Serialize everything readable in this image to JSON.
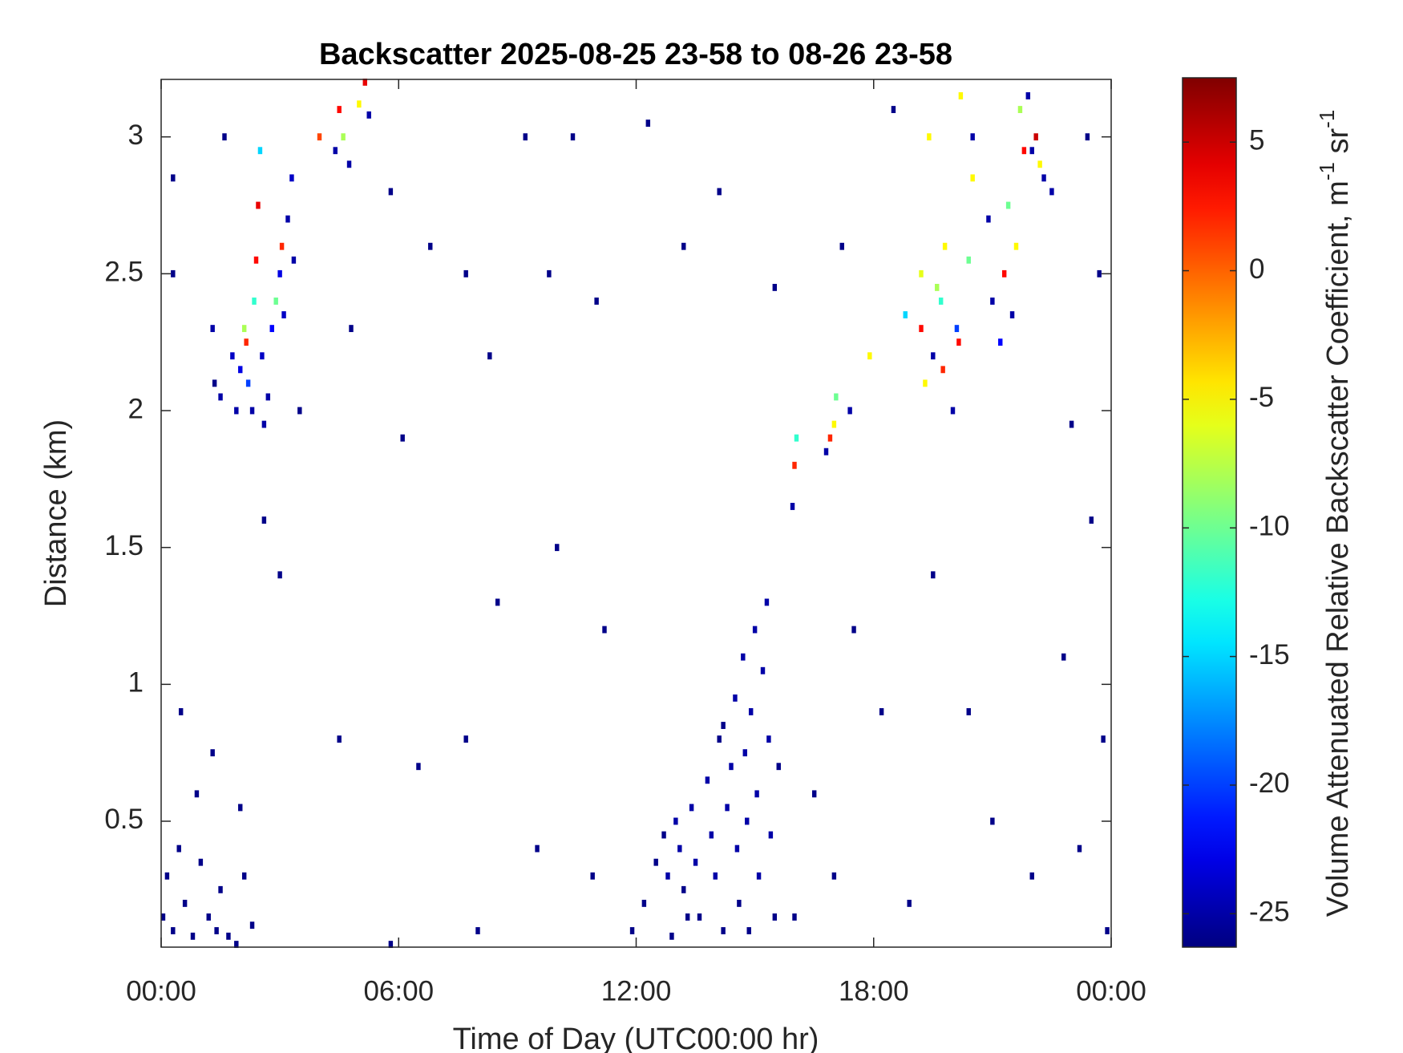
{
  "chart_data": {
    "type": "heatmap",
    "title": "Backscatter 2025-08-25 23-58 to 08-26 23-58",
    "x_label": "Time of Day (UTC00:00 hr)",
    "y_label": "Distance (km)",
    "colorbar_label": [
      "Volume Attenuated Relative Backscatter Coefficient, m",
      "-1",
      " sr",
      "-1"
    ],
    "colormap": "jet",
    "xlim": [
      0,
      24
    ],
    "xticks": [
      {
        "value": 0,
        "label": "00:00"
      },
      {
        "value": 6,
        "label": "06:00"
      },
      {
        "value": 12,
        "label": "12:00"
      },
      {
        "value": 18,
        "label": "18:00"
      },
      {
        "value": 24,
        "label": "00:00"
      }
    ],
    "ylim": [
      0.04,
      3.21
    ],
    "yticks": [
      0.5,
      1,
      1.5,
      2,
      2.5,
      3
    ],
    "clim": [
      -26.3,
      7.5
    ],
    "cticks": [
      -25,
      -20,
      -15,
      -10,
      -5,
      0,
      5
    ],
    "cells": [
      [
        1.3,
        2.3,
        -25
      ],
      [
        1.35,
        2.1,
        -26
      ],
      [
        1.5,
        2.05,
        -25
      ],
      [
        1.8,
        2.2,
        -24
      ],
      [
        1.9,
        2.0,
        -25
      ],
      [
        2.0,
        2.15,
        -23
      ],
      [
        2.1,
        2.3,
        -8
      ],
      [
        2.15,
        2.25,
        2
      ],
      [
        2.2,
        2.1,
        -20
      ],
      [
        2.3,
        2.0,
        -25
      ],
      [
        2.35,
        2.4,
        -12
      ],
      [
        2.4,
        2.55,
        3
      ],
      [
        2.45,
        2.75,
        4
      ],
      [
        2.5,
        2.95,
        -15
      ],
      [
        2.55,
        2.2,
        -24
      ],
      [
        2.6,
        1.95,
        -25
      ],
      [
        2.7,
        2.05,
        -25
      ],
      [
        2.8,
        2.3,
        -22
      ],
      [
        2.9,
        2.4,
        -10
      ],
      [
        3.0,
        2.5,
        -23
      ],
      [
        3.05,
        2.6,
        2
      ],
      [
        3.1,
        2.35,
        -24
      ],
      [
        3.2,
        2.7,
        -25
      ],
      [
        3.3,
        2.85,
        -24
      ],
      [
        3.35,
        2.55,
        -25
      ],
      [
        4.0,
        3.0,
        1
      ],
      [
        4.4,
        2.95,
        -25
      ],
      [
        4.5,
        3.1,
        3
      ],
      [
        4.6,
        3.0,
        -8
      ],
      [
        4.75,
        2.9,
        -25
      ],
      [
        5.0,
        3.12,
        -5
      ],
      [
        5.15,
        3.2,
        4
      ],
      [
        5.25,
        3.08,
        -25
      ],
      [
        0.05,
        0.15,
        -26
      ],
      [
        0.15,
        0.3,
        -26
      ],
      [
        0.3,
        0.1,
        -26
      ],
      [
        0.45,
        0.4,
        -26
      ],
      [
        0.6,
        0.2,
        -26
      ],
      [
        0.8,
        0.08,
        -26
      ],
      [
        1.0,
        0.35,
        -26
      ],
      [
        1.2,
        0.15,
        -26
      ],
      [
        1.4,
        0.1,
        -26
      ],
      [
        1.5,
        0.25,
        -26
      ],
      [
        1.7,
        0.08,
        -26
      ],
      [
        1.9,
        0.05,
        -26
      ],
      [
        2.1,
        0.3,
        -26
      ],
      [
        2.3,
        0.12,
        -26
      ],
      [
        0.5,
        0.9,
        -26
      ],
      [
        0.9,
        0.6,
        -26
      ],
      [
        1.3,
        0.75,
        -26
      ],
      [
        2.0,
        0.55,
        -26
      ],
      [
        11.9,
        0.1,
        -26
      ],
      [
        12.2,
        0.2,
        -26
      ],
      [
        12.5,
        0.35,
        -26
      ],
      [
        12.7,
        0.45,
        -26
      ],
      [
        12.8,
        0.3,
        -25
      ],
      [
        13.0,
        0.5,
        -25
      ],
      [
        13.1,
        0.4,
        -25
      ],
      [
        13.2,
        0.25,
        -26
      ],
      [
        13.4,
        0.55,
        -25
      ],
      [
        13.5,
        0.35,
        -25
      ],
      [
        13.6,
        0.15,
        -26
      ],
      [
        13.8,
        0.65,
        -25
      ],
      [
        13.9,
        0.45,
        -25
      ],
      [
        14.0,
        0.3,
        -25
      ],
      [
        14.1,
        0.8,
        -26
      ],
      [
        14.2,
        0.1,
        -26
      ],
      [
        14.3,
        0.55,
        -25
      ],
      [
        14.4,
        0.7,
        -25
      ],
      [
        14.5,
        0.95,
        -25
      ],
      [
        14.55,
        0.4,
        -25
      ],
      [
        14.6,
        0.2,
        -26
      ],
      [
        14.7,
        1.1,
        -25
      ],
      [
        14.75,
        0.75,
        -25
      ],
      [
        14.8,
        0.5,
        -25
      ],
      [
        14.85,
        0.1,
        -26
      ],
      [
        14.9,
        0.9,
        -25
      ],
      [
        15.0,
        1.2,
        -25
      ],
      [
        15.05,
        0.6,
        -25
      ],
      [
        15.1,
        0.3,
        -25
      ],
      [
        15.2,
        1.05,
        -25
      ],
      [
        15.3,
        1.3,
        -25
      ],
      [
        15.35,
        0.8,
        -25
      ],
      [
        15.4,
        0.45,
        -25
      ],
      [
        15.5,
        0.15,
        -26
      ],
      [
        15.6,
        0.7,
        -26
      ],
      [
        13.3,
        0.15,
        -26
      ],
      [
        12.9,
        0.08,
        -26
      ],
      [
        14.2,
        0.85,
        -26
      ],
      [
        15.95,
        1.65,
        -25
      ],
      [
        16.0,
        1.8,
        2
      ],
      [
        16.05,
        1.9,
        -12
      ],
      [
        16.8,
        1.85,
        -25
      ],
      [
        16.9,
        1.9,
        2
      ],
      [
        17.0,
        1.95,
        -5
      ],
      [
        17.05,
        2.05,
        -10
      ],
      [
        17.4,
        2.0,
        -25
      ],
      [
        17.9,
        2.2,
        -5
      ],
      [
        18.8,
        2.35,
        -15
      ],
      [
        19.2,
        2.5,
        -6
      ],
      [
        19.2,
        2.3,
        3
      ],
      [
        19.3,
        2.1,
        -5
      ],
      [
        19.4,
        3.0,
        -5
      ],
      [
        19.5,
        2.2,
        -25
      ],
      [
        19.6,
        2.45,
        -8
      ],
      [
        19.7,
        2.4,
        -12
      ],
      [
        19.75,
        2.15,
        2
      ],
      [
        19.8,
        2.6,
        -5
      ],
      [
        20.0,
        2.0,
        -25
      ],
      [
        20.1,
        2.3,
        -20
      ],
      [
        20.15,
        2.25,
        3
      ],
      [
        20.2,
        3.15,
        -5
      ],
      [
        20.4,
        2.55,
        -10
      ],
      [
        20.5,
        2.85,
        -5
      ],
      [
        20.5,
        3.0,
        -25
      ],
      [
        20.9,
        2.7,
        -25
      ],
      [
        21.0,
        2.4,
        -25
      ],
      [
        21.2,
        2.25,
        -22
      ],
      [
        21.3,
        2.5,
        3
      ],
      [
        21.4,
        2.75,
        -10
      ],
      [
        21.5,
        2.35,
        -25
      ],
      [
        21.6,
        2.6,
        -5
      ],
      [
        21.7,
        3.1,
        -8
      ],
      [
        21.8,
        2.95,
        3
      ],
      [
        21.9,
        3.15,
        -25
      ],
      [
        22.0,
        2.95,
        -25
      ],
      [
        22.1,
        3.0,
        5
      ],
      [
        22.2,
        2.9,
        -5
      ],
      [
        22.3,
        2.85,
        -25
      ],
      [
        22.5,
        2.8,
        -25
      ],
      [
        0.3,
        2.85,
        -26
      ],
      [
        0.3,
        2.5,
        -26
      ],
      [
        1.6,
        3.0,
        -26
      ],
      [
        3.5,
        2.0,
        -26
      ],
      [
        4.8,
        2.3,
        -26
      ],
      [
        5.8,
        2.8,
        -26
      ],
      [
        6.8,
        2.6,
        -26
      ],
      [
        7.7,
        2.5,
        -26
      ],
      [
        8.3,
        2.2,
        -26
      ],
      [
        9.2,
        3.0,
        -26
      ],
      [
        9.8,
        2.5,
        -26
      ],
      [
        10.4,
        3.0,
        -26
      ],
      [
        11.0,
        2.4,
        -26
      ],
      [
        12.3,
        3.05,
        -26
      ],
      [
        13.2,
        2.6,
        -26
      ],
      [
        14.1,
        2.8,
        -26
      ],
      [
        15.5,
        2.45,
        -26
      ],
      [
        17.2,
        2.6,
        -26
      ],
      [
        18.5,
        3.1,
        -26
      ],
      [
        23.4,
        3.0,
        -26
      ],
      [
        23.7,
        2.5,
        -26
      ],
      [
        6.1,
        1.9,
        -26
      ],
      [
        8.5,
        1.3,
        -26
      ],
      [
        10.0,
        1.5,
        -26
      ],
      [
        11.2,
        1.2,
        -26
      ],
      [
        7.7,
        0.8,
        -26
      ],
      [
        6.5,
        0.7,
        -26
      ],
      [
        9.5,
        0.4,
        -26
      ],
      [
        10.9,
        0.3,
        -26
      ],
      [
        17.5,
        1.2,
        -26
      ],
      [
        18.2,
        0.9,
        -26
      ],
      [
        19.5,
        1.4,
        -26
      ],
      [
        20.4,
        0.9,
        -26
      ],
      [
        21.0,
        0.5,
        -26
      ],
      [
        22.0,
        0.3,
        -26
      ],
      [
        23.2,
        0.4,
        -26
      ],
      [
        23.8,
        0.8,
        -26
      ],
      [
        23.9,
        0.1,
        -26
      ],
      [
        22.8,
        1.1,
        -26
      ],
      [
        16.5,
        0.6,
        -26
      ],
      [
        17.0,
        0.3,
        -26
      ],
      [
        16.0,
        0.15,
        -26
      ],
      [
        18.9,
        0.2,
        -26
      ],
      [
        8.0,
        0.1,
        -26
      ],
      [
        5.8,
        0.05,
        -26
      ],
      [
        4.5,
        0.8,
        -26
      ],
      [
        3.0,
        1.4,
        -26
      ],
      [
        2.6,
        1.6,
        -26
      ],
      [
        23.0,
        1.95,
        -26
      ],
      [
        23.5,
        1.6,
        -26
      ]
    ]
  }
}
